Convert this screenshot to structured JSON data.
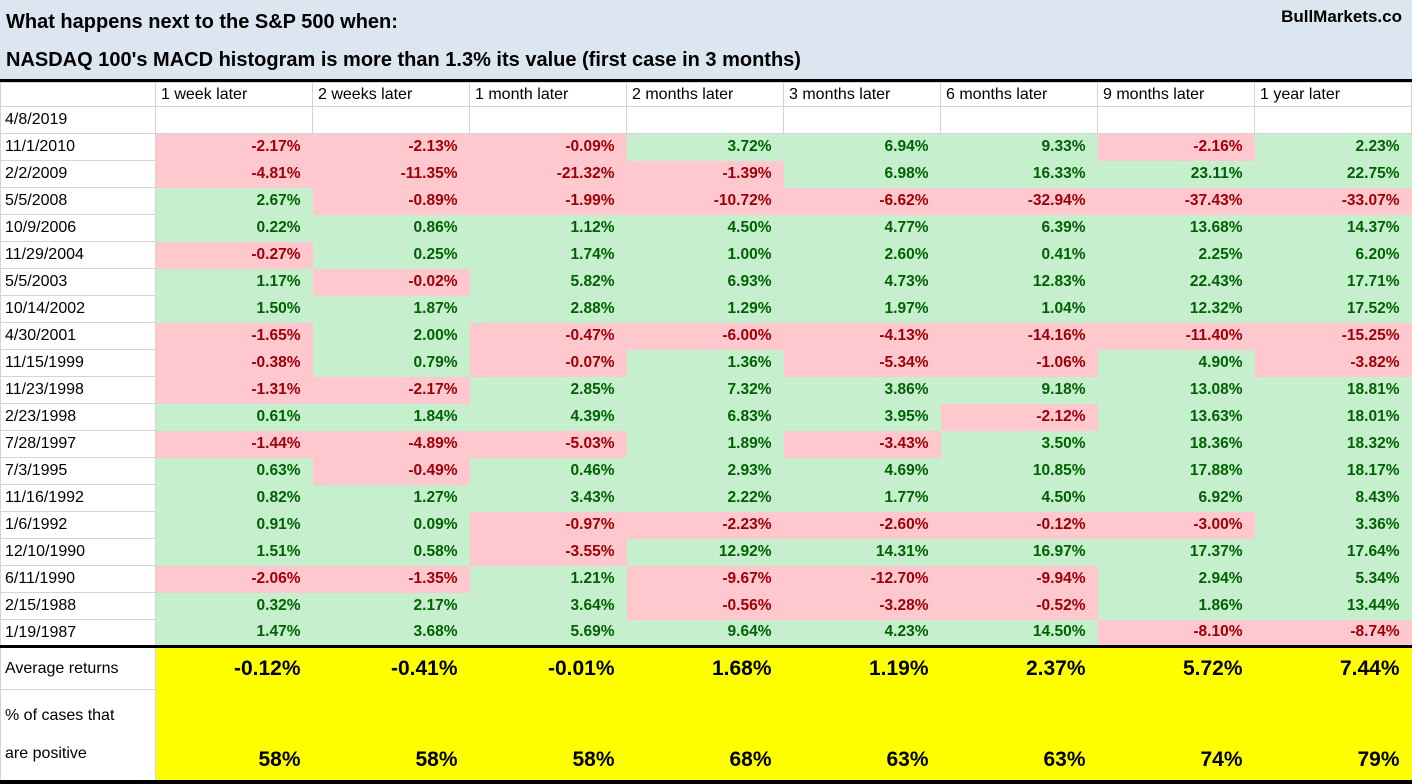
{
  "header": {
    "title_line1": "What happens next to the S&P 500 when:",
    "title_line2": "NASDAQ 100's MACD histogram is more than 1.3% its value (first case in 3 months)",
    "brand": "BullMarkets.co"
  },
  "colors": {
    "title_bg": "#DCE6F1",
    "positive_bg": "#C6EFCE",
    "positive_text": "#006100",
    "negative_bg": "#FFC7CE",
    "negative_text": "#9C0006",
    "summary_bg": "#FFFF00"
  },
  "chart_data": {
    "type": "table",
    "title": "What happens next to the S&P 500 when: NASDAQ 100's MACD histogram is more than 1.3% its value (first case in 3 months)",
    "columns": [
      "1 week later",
      "2 weeks later",
      "1 month later",
      "2 months later",
      "3 months later",
      "6 months later",
      "9 months later",
      "1 year later"
    ],
    "rows": [
      {
        "date": "4/8/2019",
        "values": [
          "",
          "",
          "",
          "",
          "",
          "",
          "",
          ""
        ]
      },
      {
        "date": "11/1/2010",
        "values": [
          "-2.17%",
          "-2.13%",
          "-0.09%",
          "3.72%",
          "6.94%",
          "9.33%",
          "-2.16%",
          "2.23%"
        ]
      },
      {
        "date": "2/2/2009",
        "values": [
          "-4.81%",
          "-11.35%",
          "-21.32%",
          "-1.39%",
          "6.98%",
          "16.33%",
          "23.11%",
          "22.75%"
        ]
      },
      {
        "date": "5/5/2008",
        "values": [
          "2.67%",
          "-0.89%",
          "-1.99%",
          "-10.72%",
          "-6.62%",
          "-32.94%",
          "-37.43%",
          "-33.07%"
        ]
      },
      {
        "date": "10/9/2006",
        "values": [
          "0.22%",
          "0.86%",
          "1.12%",
          "4.50%",
          "4.77%",
          "6.39%",
          "13.68%",
          "14.37%"
        ]
      },
      {
        "date": "11/29/2004",
        "values": [
          "-0.27%",
          "0.25%",
          "1.74%",
          "1.00%",
          "2.60%",
          "0.41%",
          "2.25%",
          "6.20%"
        ]
      },
      {
        "date": "5/5/2003",
        "values": [
          "1.17%",
          "-0.02%",
          "5.82%",
          "6.93%",
          "4.73%",
          "12.83%",
          "22.43%",
          "17.71%"
        ]
      },
      {
        "date": "10/14/2002",
        "values": [
          "1.50%",
          "1.87%",
          "2.88%",
          "1.29%",
          "1.97%",
          "1.04%",
          "12.32%",
          "17.52%"
        ]
      },
      {
        "date": "4/30/2001",
        "values": [
          "-1.65%",
          "2.00%",
          "-0.47%",
          "-6.00%",
          "-4.13%",
          "-14.16%",
          "-11.40%",
          "-15.25%"
        ]
      },
      {
        "date": "11/15/1999",
        "values": [
          "-0.38%",
          "0.79%",
          "-0.07%",
          "1.36%",
          "-5.34%",
          "-1.06%",
          "4.90%",
          "-3.82%"
        ]
      },
      {
        "date": "11/23/1998",
        "values": [
          "-1.31%",
          "-2.17%",
          "2.85%",
          "7.32%",
          "3.86%",
          "9.18%",
          "13.08%",
          "18.81%"
        ]
      },
      {
        "date": "2/23/1998",
        "values": [
          "0.61%",
          "1.84%",
          "4.39%",
          "6.83%",
          "3.95%",
          "-2.12%",
          "13.63%",
          "18.01%"
        ]
      },
      {
        "date": "7/28/1997",
        "values": [
          "-1.44%",
          "-4.89%",
          "-5.03%",
          "1.89%",
          "-3.43%",
          "3.50%",
          "18.36%",
          "18.32%"
        ]
      },
      {
        "date": "7/3/1995",
        "values": [
          "0.63%",
          "-0.49%",
          "0.46%",
          "2.93%",
          "4.69%",
          "10.85%",
          "17.88%",
          "18.17%"
        ]
      },
      {
        "date": "11/16/1992",
        "values": [
          "0.82%",
          "1.27%",
          "3.43%",
          "2.22%",
          "1.77%",
          "4.50%",
          "6.92%",
          "8.43%"
        ]
      },
      {
        "date": "1/6/1992",
        "values": [
          "0.91%",
          "0.09%",
          "-0.97%",
          "-2.23%",
          "-2.60%",
          "-0.12%",
          "-3.00%",
          "3.36%"
        ]
      },
      {
        "date": "12/10/1990",
        "values": [
          "1.51%",
          "0.58%",
          "-3.55%",
          "12.92%",
          "14.31%",
          "16.97%",
          "17.37%",
          "17.64%"
        ]
      },
      {
        "date": "6/11/1990",
        "values": [
          "-2.06%",
          "-1.35%",
          "1.21%",
          "-9.67%",
          "-12.70%",
          "-9.94%",
          "2.94%",
          "5.34%"
        ]
      },
      {
        "date": "2/15/1988",
        "values": [
          "0.32%",
          "2.17%",
          "3.64%",
          "-0.56%",
          "-3.28%",
          "-0.52%",
          "1.86%",
          "13.44%"
        ]
      },
      {
        "date": "1/19/1987",
        "values": [
          "1.47%",
          "3.68%",
          "5.69%",
          "9.64%",
          "4.23%",
          "14.50%",
          "-8.10%",
          "-8.74%"
        ]
      }
    ],
    "footer": {
      "average_label": "Average returns",
      "average_values": [
        "-0.12%",
        "-0.41%",
        "-0.01%",
        "1.68%",
        "1.19%",
        "2.37%",
        "5.72%",
        "7.44%"
      ],
      "positive_label": "% of cases that\nare positive",
      "positive_values": [
        "58%",
        "58%",
        "58%",
        "68%",
        "63%",
        "63%",
        "74%",
        "79%"
      ]
    }
  }
}
